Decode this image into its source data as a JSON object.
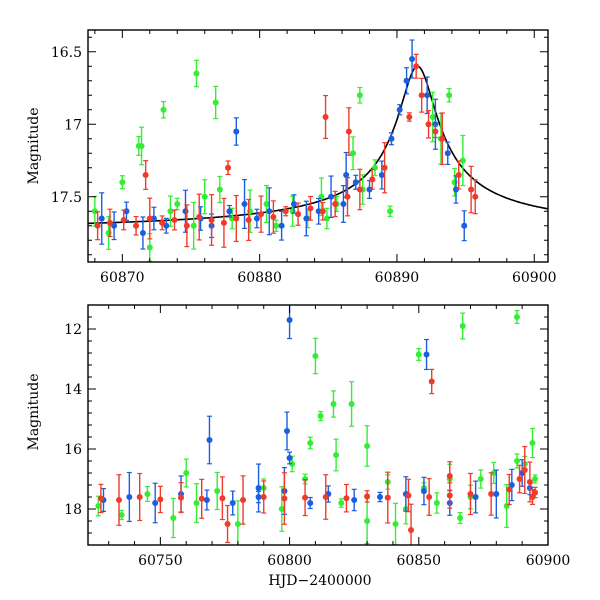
{
  "chart_data": [
    {
      "type": "scatter",
      "panel": "top",
      "title": "",
      "xlabel": "",
      "ylabel": "Magnitude",
      "xlim": [
        60867.5,
        60901
      ],
      "ylim": [
        17.95,
        16.35
      ],
      "y_inverted": true,
      "xticks": [
        60870,
        60880,
        60890,
        60900
      ],
      "yticks": [
        16.5,
        17,
        17.5
      ],
      "grid": false,
      "legend": "none",
      "colors": {
        "green": "#33ee33",
        "blue": "#1a5fe0",
        "red": "#f03a2a",
        "model": "#000000"
      },
      "model_curve": {
        "name": "",
        "peak_x": 60891.5,
        "peak_y": 16.6,
        "baseline_y": 17.75,
        "description_hidden": true
      },
      "series": [
        {
          "color_key": "green",
          "x": [
            60868,
            60869,
            60870,
            60871.2,
            60872,
            60873.5,
            60874,
            60875.2,
            60876,
            60877.1,
            60878,
            60879.3,
            60880.5,
            60881.2,
            60882.4,
            60883.5,
            60884.5,
            60885.6,
            60886.8,
            60887.5,
            60888.4,
            60889.5,
            60892.6,
            60893.2,
            60893.8,
            60894.2,
            60894.8,
            60873,
            60875.4,
            60876.8,
            60871.4,
            60884.9,
            60887.3
          ],
          "y": [
            17.6,
            17.75,
            17.4,
            17.15,
            17.85,
            17.6,
            17.55,
            17.7,
            17.5,
            17.45,
            17.65,
            17.6,
            17.55,
            17.7,
            17.6,
            17.65,
            17.5,
            17.55,
            17.2,
            17.45,
            17.3,
            17.6,
            16.95,
            17.1,
            16.8,
            17.4,
            17.25,
            16.9,
            16.65,
            16.85,
            17.15,
            17.65,
            16.8
          ]
        },
        {
          "color_key": "blue",
          "x": [
            60868.5,
            60869.4,
            60870.3,
            60871.5,
            60872.3,
            60873.2,
            60874.6,
            60875.7,
            60876.5,
            60877.8,
            60878.9,
            60879.8,
            60880.7,
            60881.6,
            60882.5,
            60883.4,
            60884.3,
            60885.2,
            60886.1,
            60887,
            60888,
            60888.9,
            60889.6,
            60890.2,
            60890.7,
            60891.1,
            60892.2,
            60892.8,
            60893.7,
            60894.3,
            60894.9,
            60878.3,
            60886.3
          ],
          "y": [
            17.65,
            17.7,
            17.6,
            17.75,
            17.65,
            17.7,
            17.6,
            17.65,
            17.7,
            17.6,
            17.55,
            17.65,
            17.6,
            17.7,
            17.55,
            17.65,
            17.6,
            17.5,
            17.55,
            17.4,
            17.45,
            17.35,
            17.1,
            16.9,
            16.7,
            16.55,
            16.8,
            17.0,
            17.2,
            17.45,
            17.7,
            17.05,
            17.35
          ]
        },
        {
          "color_key": "red",
          "x": [
            60868.2,
            60869.1,
            60870.1,
            60871,
            60872,
            60872.9,
            60873.8,
            60874.7,
            60875.6,
            60876.5,
            60877.4,
            60878.3,
            60879.2,
            60880.1,
            60881,
            60881.9,
            60882.8,
            60883.7,
            60884.6,
            60885.5,
            60886.4,
            60887.3,
            60888.2,
            60889.1,
            60890.9,
            60891.4,
            60891.8,
            60892.3,
            60892.8,
            60893.3,
            60894.5,
            60895.4,
            60895.7,
            60871.7,
            60877.7,
            60884.8,
            60886.5
          ],
          "y": [
            17.7,
            17.68,
            17.66,
            17.7,
            17.65,
            17.68,
            17.66,
            17.7,
            17.64,
            17.66,
            17.68,
            17.65,
            17.66,
            17.62,
            17.64,
            17.6,
            17.62,
            17.58,
            17.6,
            17.55,
            17.5,
            17.45,
            17.38,
            17.3,
            16.95,
            16.6,
            16.8,
            17.0,
            17.05,
            17.1,
            17.35,
            17.45,
            17.5,
            17.35,
            17.3,
            16.95,
            17.05
          ]
        }
      ]
    },
    {
      "type": "scatter",
      "panel": "bottom",
      "title": "",
      "xlabel": "HJD−2400000",
      "ylabel": "Magnitude",
      "xlim": [
        60722,
        60900
      ],
      "ylim": [
        19.2,
        11.2
      ],
      "y_inverted": true,
      "xticks": [
        60750,
        60800,
        60850,
        60900
      ],
      "yticks": [
        12,
        14,
        16,
        18
      ],
      "grid": false,
      "legend": "none",
      "colors": {
        "green": "#33ee33",
        "blue": "#1a5fe0",
        "red": "#f03a2a",
        "model": "#000000"
      },
      "series": [
        {
          "color_key": "green",
          "x": [
            60726,
            60735,
            60745,
            60755,
            60764,
            60772,
            60780,
            60790,
            60797,
            60801,
            60806,
            60808,
            60812,
            60818,
            60824,
            60830,
            60838,
            60845,
            60852,
            60857,
            60862,
            60866,
            60870,
            60874,
            60879,
            60884,
            60888,
            60891,
            60895,
            60810,
            60850,
            60867,
            60888,
            60894,
            60817,
            60820,
            60841,
            60760,
            60830
          ],
          "y": [
            17.9,
            18.2,
            17.5,
            18.3,
            17.8,
            17.4,
            18.5,
            17.3,
            18.0,
            16.5,
            17.0,
            15.8,
            14.9,
            16.2,
            14.5,
            18.4,
            17.1,
            18.0,
            17.3,
            17.8,
            17.0,
            18.3,
            17.6,
            17.0,
            16.8,
            17.9,
            16.4,
            16.5,
            17.0,
            12.9,
            12.85,
            11.9,
            11.6,
            15.8,
            14.5,
            17.8,
            18.5,
            16.8,
            15.9
          ]
        },
        {
          "color_key": "blue",
          "x": [
            60728,
            60738,
            60748,
            60758,
            60768,
            60778,
            60788,
            60798,
            60800,
            60808,
            60815,
            60825,
            60835,
            60845,
            60852,
            60862,
            60872,
            60880,
            60886,
            60890,
            60893,
            60769,
            60800,
            60853,
            60788,
            60799
          ],
          "y": [
            17.7,
            17.6,
            17.8,
            17.5,
            17.7,
            17.8,
            17.6,
            17.4,
            16.3,
            17.8,
            17.5,
            17.7,
            17.6,
            17.5,
            17.4,
            17.8,
            17.6,
            17.5,
            17.2,
            16.8,
            17.3,
            15.7,
            11.7,
            12.85,
            17.3,
            15.4
          ]
        },
        {
          "color_key": "red",
          "x": [
            60727,
            60734,
            60742,
            60750,
            60758,
            60766,
            60774,
            60782,
            60790,
            60798,
            60806,
            60814,
            60822,
            60830,
            60838,
            60846,
            60854,
            60862,
            60870,
            60878,
            60885,
            60889,
            60891,
            60893,
            60895,
            60855,
            60862,
            60847,
            60776,
            60894
          ],
          "y": [
            17.65,
            17.7,
            17.6,
            17.68,
            17.62,
            17.66,
            17.64,
            17.7,
            17.6,
            17.65,
            17.62,
            17.6,
            17.64,
            17.58,
            17.62,
            17.55,
            17.6,
            17.55,
            17.5,
            17.5,
            17.35,
            17.0,
            16.7,
            17.1,
            17.45,
            13.75,
            16.9,
            18.7,
            18.5,
            17.6
          ]
        }
      ]
    }
  ]
}
